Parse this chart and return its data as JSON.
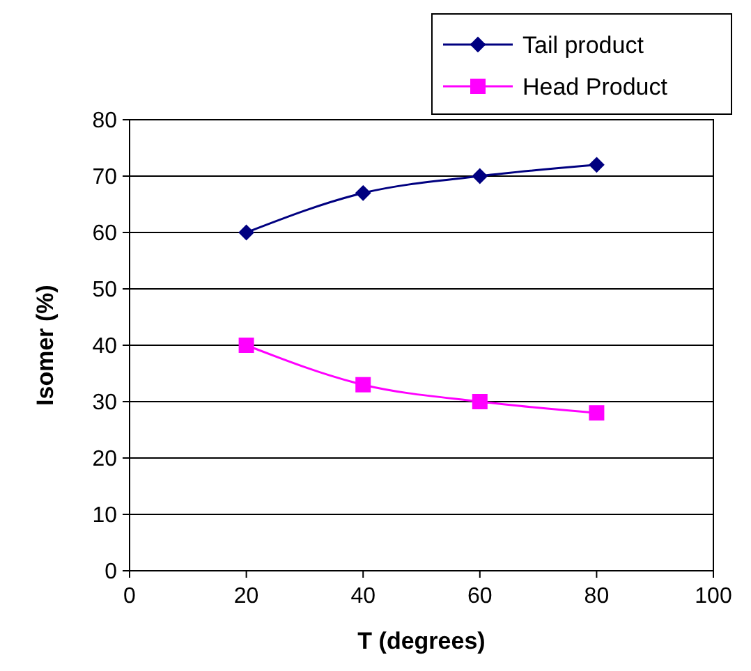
{
  "chart_data": {
    "type": "line",
    "xlabel": "T (degrees)",
    "ylabel": "Isomer (%)",
    "x": [
      20,
      40,
      60,
      80
    ],
    "series": [
      {
        "name": "Tail product",
        "color": "#000080",
        "values": [
          60,
          67,
          70,
          72
        ],
        "marker": "diamond"
      },
      {
        "name": "Head Product",
        "color": "#ff00ff",
        "values": [
          40,
          33,
          30,
          28
        ],
        "marker": "square"
      }
    ],
    "xlim": [
      0,
      100
    ],
    "xticks": [
      0,
      20,
      40,
      60,
      80,
      100
    ],
    "ylim": [
      0,
      80
    ],
    "yticks": [
      0,
      10,
      20,
      30,
      40,
      50,
      60,
      70,
      80
    ],
    "grid": "y",
    "legend": "top right",
    "line_style": "solid"
  }
}
